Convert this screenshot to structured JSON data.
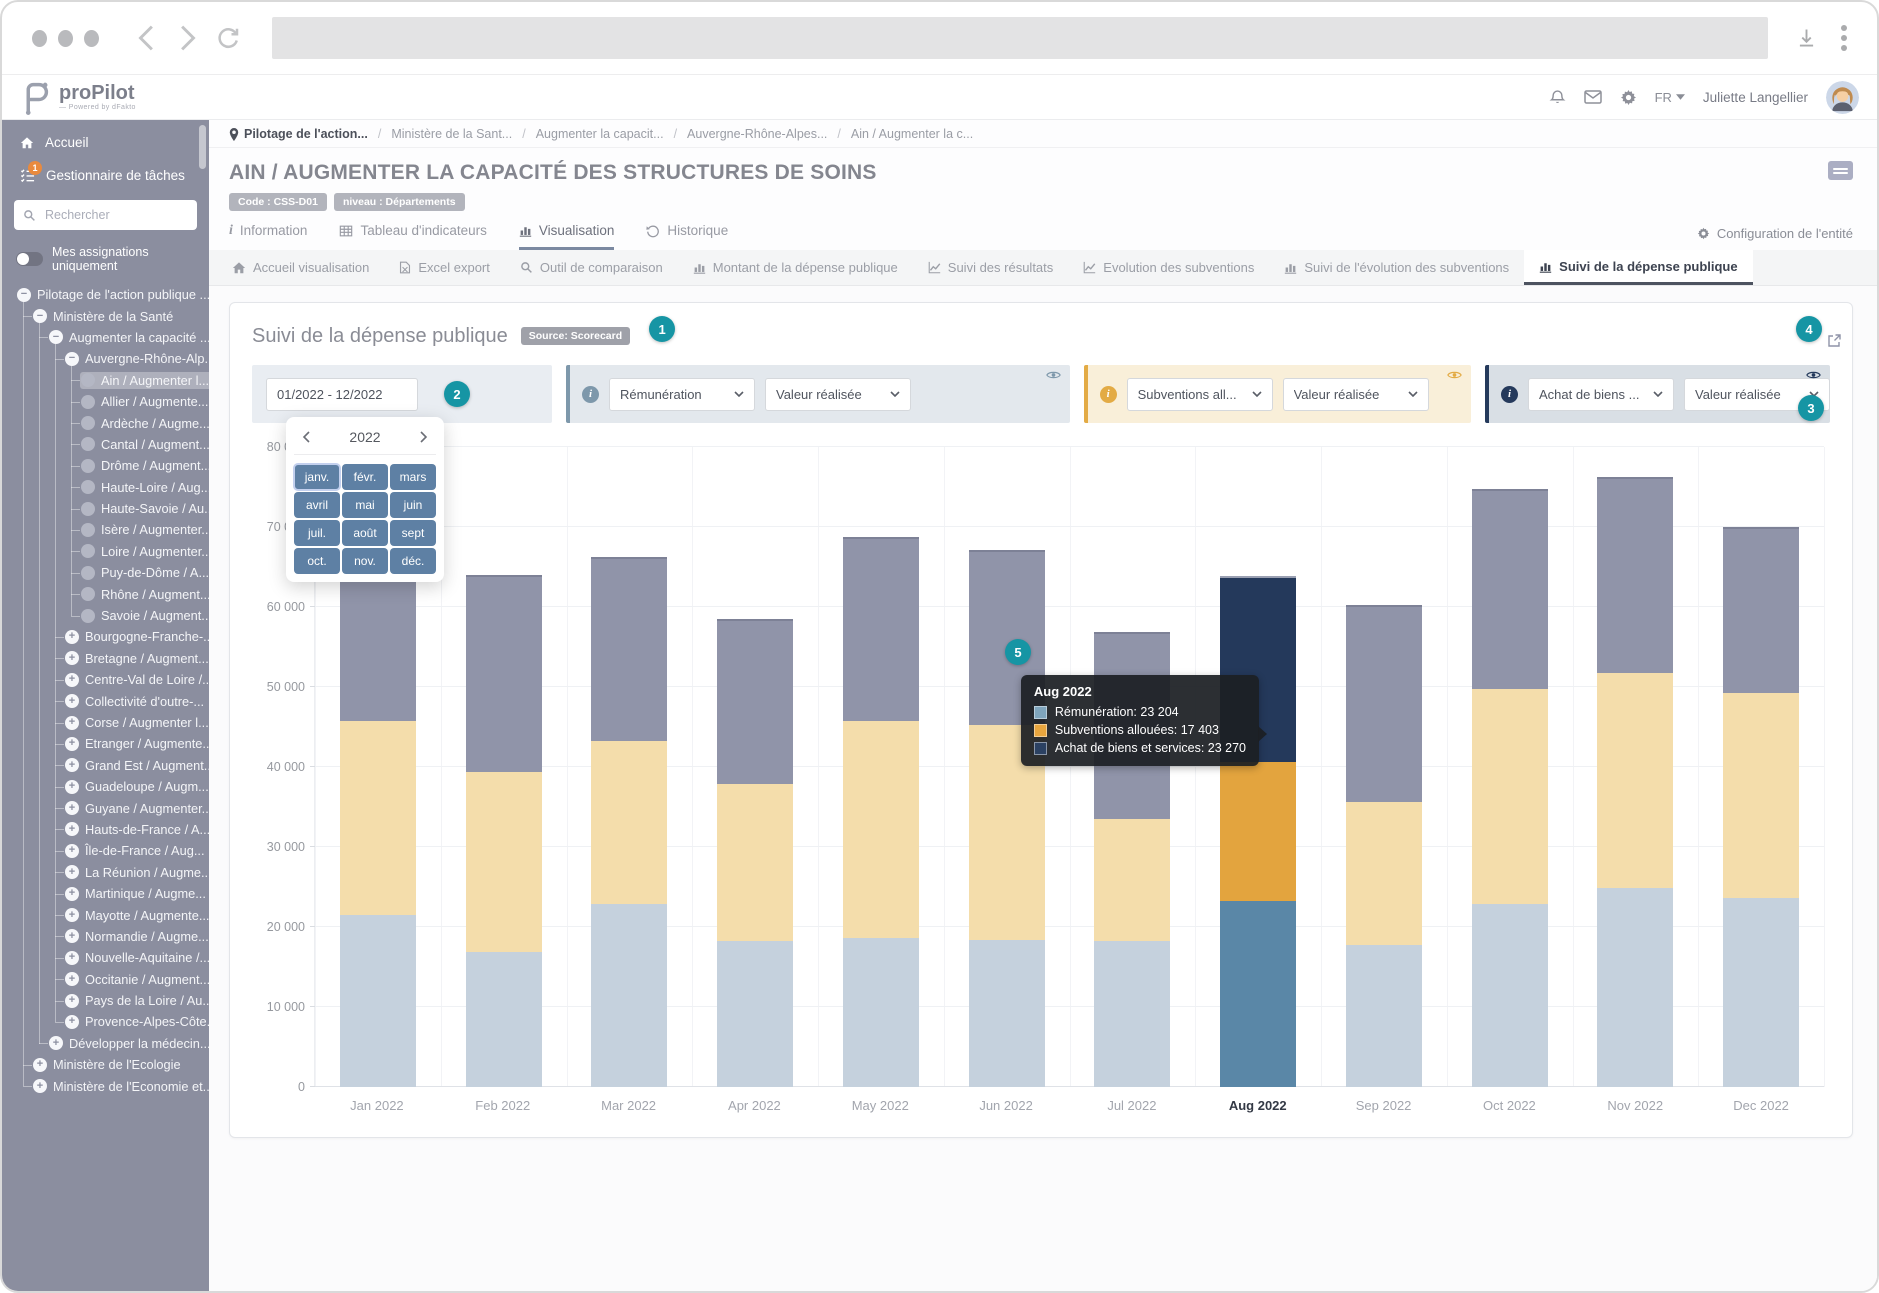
{
  "app_header": {
    "logo_text": "proPilot",
    "logo_tagline": "— Powered by dFakto",
    "language": "FR",
    "user_name": "Juliette Langellier"
  },
  "sidebar": {
    "items_top": [
      {
        "label": "Accueil",
        "icon": "home-icon"
      },
      {
        "label": "Gestionnaire de tâches",
        "icon": "tasks-icon",
        "badge": "1"
      }
    ],
    "search_placeholder": "Rechercher",
    "toggle_label": "Mes assignations uniquement",
    "tree": [
      {
        "label": "Pilotage de l'action publique ...",
        "level": 0,
        "node": "minus"
      },
      {
        "label": "Ministère de la Santé",
        "level": 1,
        "node": "minus"
      },
      {
        "label": "Augmenter la capacité ...",
        "level": 2,
        "node": "minus"
      },
      {
        "label": "Auvergne-Rhône-Alp...",
        "level": 3,
        "node": "minus"
      },
      {
        "label": "Ain / Augmenter l...",
        "level": 4,
        "node": "dot",
        "selected": true
      },
      {
        "label": "Allier / Augmente...",
        "level": 4,
        "node": "dot"
      },
      {
        "label": "Ardèche / Augme...",
        "level": 4,
        "node": "dot"
      },
      {
        "label": "Cantal / Augment...",
        "level": 4,
        "node": "dot"
      },
      {
        "label": "Drôme / Augment...",
        "level": 4,
        "node": "dot"
      },
      {
        "label": "Haute-Loire / Aug...",
        "level": 4,
        "node": "dot"
      },
      {
        "label": "Haute-Savoie / Au...",
        "level": 4,
        "node": "dot"
      },
      {
        "label": "Isère / Augmenter...",
        "level": 4,
        "node": "dot"
      },
      {
        "label": "Loire / Augmenter...",
        "level": 4,
        "node": "dot"
      },
      {
        "label": "Puy-de-Dôme / A...",
        "level": 4,
        "node": "dot"
      },
      {
        "label": "Rhône / Augment...",
        "level": 4,
        "node": "dot"
      },
      {
        "label": "Savoie / Augment...",
        "level": 4,
        "node": "dot"
      },
      {
        "label": "Bourgogne-Franche-...",
        "level": 3,
        "node": "plus"
      },
      {
        "label": "Bretagne / Augment...",
        "level": 3,
        "node": "plus"
      },
      {
        "label": "Centre-Val de Loire /...",
        "level": 3,
        "node": "plus"
      },
      {
        "label": "Collectivité d'outre-...",
        "level": 3,
        "node": "plus"
      },
      {
        "label": "Corse / Augmenter l...",
        "level": 3,
        "node": "plus"
      },
      {
        "label": "Etranger / Augmente...",
        "level": 3,
        "node": "plus"
      },
      {
        "label": "Grand Est / Augment...",
        "level": 3,
        "node": "plus"
      },
      {
        "label": "Guadeloupe / Augm...",
        "level": 3,
        "node": "plus"
      },
      {
        "label": "Guyane / Augmenter...",
        "level": 3,
        "node": "plus"
      },
      {
        "label": "Hauts-de-France / A...",
        "level": 3,
        "node": "plus"
      },
      {
        "label": "Île-de-France / Aug...",
        "level": 3,
        "node": "plus"
      },
      {
        "label": "La Réunion / Augme...",
        "level": 3,
        "node": "plus"
      },
      {
        "label": "Martinique / Augme...",
        "level": 3,
        "node": "plus"
      },
      {
        "label": "Mayotte / Augmente...",
        "level": 3,
        "node": "plus"
      },
      {
        "label": "Normandie / Augme...",
        "level": 3,
        "node": "plus"
      },
      {
        "label": "Nouvelle-Aquitaine /...",
        "level": 3,
        "node": "plus"
      },
      {
        "label": "Occitanie / Augment...",
        "level": 3,
        "node": "plus"
      },
      {
        "label": "Pays de la Loire / Au...",
        "level": 3,
        "node": "plus"
      },
      {
        "label": "Provence-Alpes-Côte...",
        "level": 3,
        "node": "plus"
      },
      {
        "label": "Développer la médecin...",
        "level": 2,
        "node": "plus"
      },
      {
        "label": "Ministère de l'Ecologie",
        "level": 1,
        "node": "plus"
      },
      {
        "label": "Ministère de l'Economie et...",
        "level": 1,
        "node": "plus"
      }
    ],
    "guides": [
      {
        "col": 0,
        "from": 0,
        "to": 37
      },
      {
        "col": 1,
        "from": 1,
        "to": 35
      },
      {
        "col": 2,
        "from": 2,
        "to": 34
      },
      {
        "col": 3,
        "from": 3,
        "to": 15
      }
    ]
  },
  "breadcrumb": {
    "items": [
      "Pilotage de l'action...",
      "Ministère de la Sant...",
      "Augmenter la capacit...",
      "Auvergne-Rhône-Alpes...",
      "Ain / Augmenter la c..."
    ]
  },
  "entity": {
    "title": "AIN / AUGMENTER LA CAPACITÉ DES STRUCTURES DE SOINS",
    "badges": [
      "Code : CSS-D01",
      "niveau : Départements"
    ]
  },
  "tabs": {
    "items": [
      {
        "label": "Information",
        "icon": "info-icon",
        "active": false
      },
      {
        "label": "Tableau d'indicateurs",
        "icon": "table-icon",
        "active": false
      },
      {
        "label": "Visualisation",
        "icon": "bar-chart-icon",
        "active": true
      },
      {
        "label": "Historique",
        "icon": "history-icon",
        "active": false
      }
    ],
    "config_label": "Configuration de l'entité"
  },
  "subtabs": [
    {
      "label": "Accueil visualisation",
      "icon": "home-icon",
      "active": false
    },
    {
      "label": "Excel export",
      "icon": "file-icon",
      "active": false
    },
    {
      "label": "Outil de comparaison",
      "icon": "search-icon",
      "active": false
    },
    {
      "label": "Montant de la dépense publique",
      "icon": "bar-chart-icon",
      "active": false
    },
    {
      "label": "Suivi des résultats",
      "icon": "line-chart-icon",
      "active": false
    },
    {
      "label": "Evolution des subventions",
      "icon": "line-chart-icon",
      "active": false
    },
    {
      "label": "Suivi de l'évolution des subventions",
      "icon": "bar-chart-icon",
      "active": false
    },
    {
      "label": "Suivi de la dépense publique",
      "icon": "bar-chart-icon",
      "active": true
    }
  ],
  "panel": {
    "title": "Suivi de la dépense publique",
    "source_badge": "Source: Scorecard",
    "date_range": "01/2022 - 12/2022",
    "markers": [
      "1",
      "2",
      "3",
      "4",
      "5"
    ],
    "calendar": {
      "year": "2022",
      "months": [
        "janv.",
        "févr.",
        "mars",
        "avril",
        "mai",
        "juin",
        "juil.",
        "août",
        "sept",
        "oct.",
        "nov.",
        "déc."
      ]
    },
    "filters": [
      {
        "indicator": "Rémunération",
        "value": "Valeur réalisée",
        "accent": "#7e98ab",
        "bg": "#e3e8ed",
        "flex": 512
      },
      {
        "indicator": "Subventions all...",
        "value": "Valeur réalisée",
        "accent": "#e3ab45",
        "bg": "#f9efd9",
        "flex": 390
      },
      {
        "indicator": "Achat de biens ...",
        "value": "Valeur réalisée",
        "accent": "#253a5c",
        "bg": "#d9dfe5",
        "flex": 334
      }
    ]
  },
  "tooltip": {
    "title": "Aug 2022",
    "rows": [
      {
        "label": "Rémunération",
        "value": "23 204",
        "color": "#7fa5bd"
      },
      {
        "label": "Subventions allouées",
        "value": "17 403",
        "color": "#e7a53e"
      },
      {
        "label": "Achat de biens et services",
        "value": "23 270",
        "color": "#2b4162"
      }
    ]
  },
  "chart_data": {
    "type": "bar",
    "stacked": true,
    "title": "Suivi de la dépense publique",
    "categories": [
      "Jan 2022",
      "Feb 2022",
      "Mar 2022",
      "Apr 2022",
      "May 2022",
      "Jun 2022",
      "Jul 2022",
      "Aug 2022",
      "Sep 2022",
      "Oct 2022",
      "Nov 2022",
      "Dec 2022"
    ],
    "series": [
      {
        "name": "Rémunération",
        "values": [
          21500,
          16900,
          22900,
          18300,
          18600,
          18400,
          18300,
          23204,
          17800,
          22900,
          24900,
          23600
        ]
      },
      {
        "name": "Subventions allouées",
        "values": [
          24200,
          22500,
          20400,
          19600,
          27100,
          26800,
          15200,
          17403,
          17800,
          26900,
          26800,
          25600
        ]
      },
      {
        "name": "Achat de biens et services",
        "values": [
          20100,
          24600,
          22900,
          20600,
          23000,
          21900,
          23400,
          23270,
          24700,
          25000,
          24600,
          20800
        ]
      }
    ],
    "ylim": [
      0,
      80000
    ],
    "yticks": [
      "0",
      "10 000",
      "20 000",
      "30 000",
      "40 000",
      "50 000",
      "60 000",
      "70 000",
      "80 000"
    ],
    "grid": true,
    "legend_position": "none",
    "highlight_category": "Aug 2022",
    "colors": {
      "normal": [
        "#c5d1dd",
        "#f4ddab",
        "#9094a9"
      ],
      "highlight": [
        "#5a87a7",
        "#e3a43e",
        "#24395b"
      ]
    }
  }
}
